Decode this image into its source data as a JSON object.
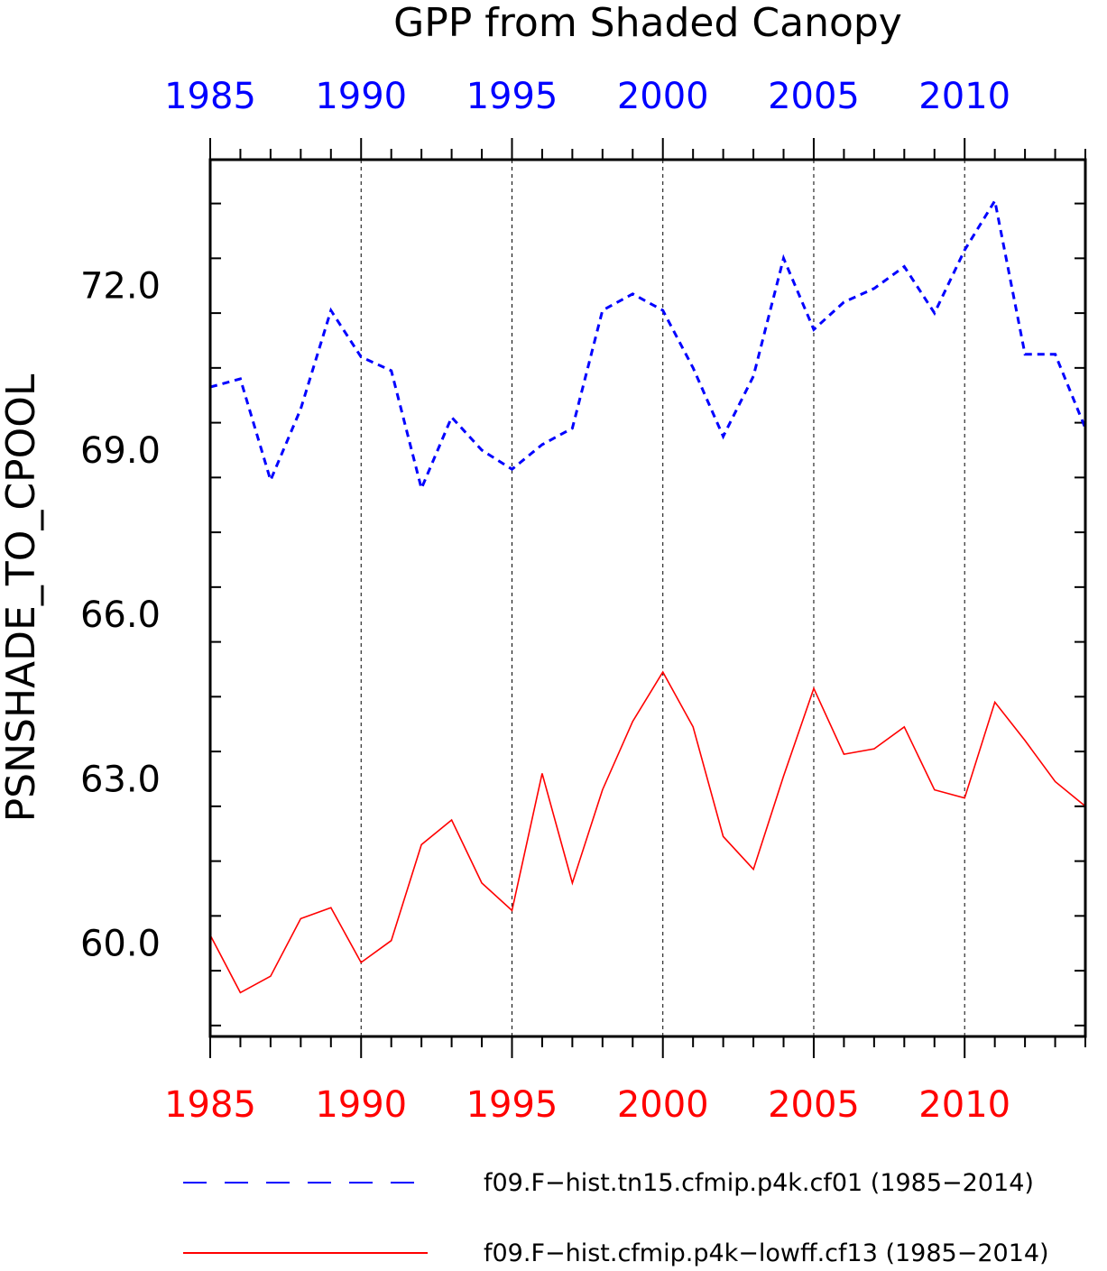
{
  "chart_data": {
    "type": "line",
    "title": "GPP from Shaded Canopy",
    "ylabel": "PSNSHADE_TO_CPOOL",
    "xlabel": "",
    "xlim": [
      1985,
      2014
    ],
    "ylim": [
      58.3,
      74.3
    ],
    "y_ticks": [
      60,
      63,
      66,
      69,
      72
    ],
    "y_tick_labels": [
      "60.0",
      "63.0",
      "66.0",
      "69.0",
      "72.0"
    ],
    "top_x_ticks": [
      1985,
      1990,
      1995,
      2000,
      2005,
      2010
    ],
    "top_x_tick_labels": [
      "1985",
      "1990",
      "1995",
      "2000",
      "2005",
      "2010"
    ],
    "bottom_x_ticks": [
      1985,
      1990,
      1995,
      2000,
      2005,
      2010
    ],
    "bottom_x_tick_labels": [
      "1985",
      "1990",
      "1995",
      "2000",
      "2005",
      "2010"
    ],
    "top_axis_color": "#0000ff",
    "bottom_axis_color": "#ff0000",
    "vertical_grid": true,
    "legend_position": "bottom",
    "x": [
      1985,
      1986,
      1987,
      1988,
      1989,
      1990,
      1991,
      1992,
      1993,
      1994,
      1995,
      1996,
      1997,
      1998,
      1999,
      2000,
      2001,
      2002,
      2003,
      2004,
      2005,
      2006,
      2007,
      2008,
      2009,
      2010,
      2011,
      2012,
      2013,
      2014
    ],
    "series": [
      {
        "name": "f09.F−hist.tn15.cfmip.p4k.cf01 (1985−2014)",
        "color": "#0000ff",
        "dash": "dashed",
        "values": [
          70.15,
          70.3,
          68.45,
          69.75,
          71.55,
          70.7,
          70.45,
          68.3,
          69.6,
          69.0,
          68.65,
          69.1,
          69.4,
          71.55,
          71.85,
          71.55,
          70.5,
          69.25,
          70.35,
          72.5,
          71.2,
          71.7,
          71.95,
          72.35,
          71.5,
          72.65,
          73.55,
          70.75,
          70.75,
          69.4
        ]
      },
      {
        "name": "f09.F−hist.cfmip.p4k−lowff.cf13 (1985−2014)",
        "color": "#ff0000",
        "dash": "solid",
        "values": [
          60.15,
          59.1,
          59.4,
          60.45,
          60.65,
          59.65,
          60.05,
          61.8,
          62.25,
          61.1,
          60.6,
          63.1,
          61.1,
          62.8,
          64.05,
          64.95,
          63.95,
          61.95,
          61.35,
          63.05,
          64.65,
          63.45,
          63.55,
          63.95,
          62.8,
          62.65,
          64.4,
          63.7,
          62.95,
          62.5
        ]
      }
    ]
  }
}
